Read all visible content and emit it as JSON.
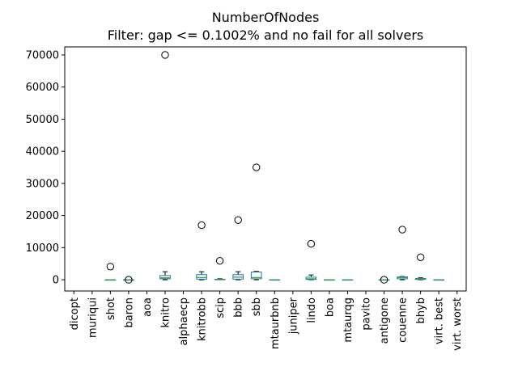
{
  "chart_data": {
    "type": "box",
    "title": "NumberOfNodes",
    "subtitle": "Filter: gap <= 0.1002% and no fail for all solvers",
    "ylim": [
      -3500,
      72500
    ],
    "yticks": [
      0,
      10000,
      20000,
      30000,
      40000,
      50000,
      60000,
      70000
    ],
    "ytick_labels": [
      "0",
      "10000",
      "20000",
      "30000",
      "40000",
      "50000",
      "60000",
      "70000"
    ],
    "grid": false,
    "colors": {
      "box": "#1f77b4",
      "median": "#2ca02c",
      "whisker": "#000000",
      "flier": "#000000"
    },
    "categories": [
      "dicopt",
      "muriqui",
      "shot",
      "baron",
      "aoa",
      "knitro",
      "alphaecp",
      "knitrobb",
      "scip",
      "bbb",
      "sbb",
      "mtaurbnb",
      "juniper",
      "lindo",
      "boa",
      "mtaurqg",
      "pavito",
      "antigone",
      "couenne",
      "bhyb",
      "virt. best",
      "virt. worst"
    ],
    "boxes": [
      null,
      null,
      {
        "q1": 0,
        "median": 0,
        "q3": 0,
        "whislo": 0,
        "whishi": 0,
        "fliers": [
          4100
        ]
      },
      {
        "q1": 0,
        "median": 0,
        "q3": 0,
        "whislo": 0,
        "whishi": 0,
        "fliers": [
          0
        ]
      },
      null,
      {
        "q1": 300,
        "median": 600,
        "q3": 1300,
        "whislo": 0,
        "whishi": 2500,
        "fliers": [
          70000
        ]
      },
      null,
      {
        "q1": 200,
        "median": 700,
        "q3": 1600,
        "whislo": 0,
        "whishi": 2500,
        "fliers": [
          17000
        ]
      },
      {
        "q1": 0,
        "median": 50,
        "q3": 150,
        "whislo": 0,
        "whishi": 300,
        "fliers": [
          5900
        ]
      },
      {
        "q1": 200,
        "median": 800,
        "q3": 1600,
        "whislo": 0,
        "whishi": 2500,
        "fliers": [
          18600
        ]
      },
      {
        "q1": 300,
        "median": 700,
        "q3": 2400,
        "whislo": 0,
        "whishi": 2600,
        "fliers": [
          35000
        ]
      },
      {
        "q1": 0,
        "median": 0,
        "q3": 0,
        "whislo": 0,
        "whishi": 0,
        "fliers": []
      },
      null,
      {
        "q1": 100,
        "median": 300,
        "q3": 800,
        "whislo": 0,
        "whishi": 1500,
        "fliers": [
          11200
        ]
      },
      {
        "q1": 0,
        "median": 0,
        "q3": 0,
        "whislo": 0,
        "whishi": 0,
        "fliers": []
      },
      {
        "q1": 0,
        "median": 0,
        "q3": 0,
        "whislo": 0,
        "whishi": 0,
        "fliers": []
      },
      null,
      {
        "q1": 0,
        "median": 0,
        "q3": 0,
        "whislo": 0,
        "whishi": 0,
        "fliers": [
          0
        ]
      },
      {
        "q1": 300,
        "median": 700,
        "q3": 900,
        "whislo": 0,
        "whishi": 1000,
        "fliers": [
          15600
        ]
      },
      {
        "q1": 100,
        "median": 300,
        "q3": 400,
        "whislo": 0,
        "whishi": 600,
        "fliers": [
          7000
        ]
      },
      {
        "q1": 0,
        "median": 0,
        "q3": 0,
        "whislo": 0,
        "whishi": 0,
        "fliers": []
      },
      null
    ]
  }
}
